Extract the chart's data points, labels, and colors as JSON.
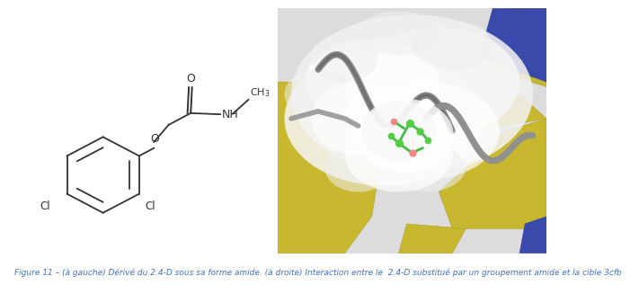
{
  "caption": "Figure 11 – (à gauche) Dérivé du 2.4-D sous sa forme amide. (à droite) Interaction entre le  2.4-D substitué par un groupement amide et la cible 3cfb",
  "caption_color": "#4472C4",
  "caption_fontsize": 6.5,
  "bg_color": "#ffffff",
  "fig_width": 5.98,
  "fig_height": 2.99
}
